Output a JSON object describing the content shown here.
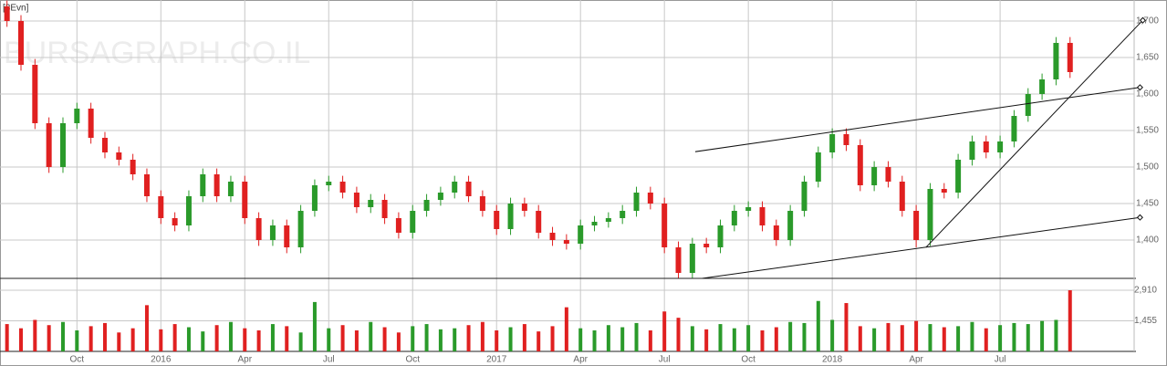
{
  "chart_data": {
    "type": "candlestick",
    "label": "[3Evn]",
    "watermark": "BURSAGRAPH.CO.IL",
    "categories": [
      null,
      null,
      null,
      null,
      null,
      "Oct",
      null,
      null,
      null,
      null,
      null,
      "2016",
      null,
      null,
      null,
      null,
      null,
      "Apr",
      null,
      null,
      null,
      null,
      null,
      "Jul",
      null,
      null,
      null,
      null,
      null,
      "Oct",
      null,
      null,
      null,
      null,
      null,
      "2017",
      null,
      null,
      null,
      null,
      null,
      "Apr",
      null,
      null,
      null,
      null,
      null,
      "Jul",
      null,
      null,
      null,
      null,
      null,
      "Oct",
      null,
      null,
      null,
      null,
      null,
      "2018",
      null,
      null,
      null,
      null,
      null,
      "Apr",
      null,
      null,
      null,
      null,
      null,
      "Jul",
      null,
      null,
      null,
      null,
      null
    ],
    "open": [
      1720,
      1700,
      1640,
      1560,
      1500,
      1560,
      1580,
      1540,
      1520,
      1510,
      1490,
      1460,
      1430,
      1420,
      1460,
      1490,
      1460,
      1480,
      1430,
      1400,
      1420,
      1390,
      1440,
      1475,
      1480,
      1465,
      1445,
      1455,
      1430,
      1410,
      1440,
      1455,
      1465,
      1480,
      1460,
      1440,
      1415,
      1450,
      1440,
      1410,
      1400,
      1395,
      1420,
      1425,
      1430,
      1440,
      1465,
      1450,
      1390,
      1355,
      1395,
      1390,
      1420,
      1440,
      1445,
      1420,
      1400,
      1440,
      1480,
      1520,
      1545,
      1530,
      1475,
      1500,
      1480,
      1440,
      1400,
      1470,
      1465,
      1510,
      1535,
      1520,
      1535,
      1570,
      1600,
      1620,
      1670
    ],
    "high": [
      1728,
      1708,
      1648,
      1568,
      1568,
      1588,
      1588,
      1548,
      1528,
      1518,
      1498,
      1468,
      1438,
      1468,
      1498,
      1498,
      1488,
      1488,
      1438,
      1428,
      1428,
      1448,
      1483,
      1488,
      1488,
      1473,
      1463,
      1463,
      1438,
      1448,
      1463,
      1473,
      1488,
      1488,
      1468,
      1448,
      1458,
      1458,
      1448,
      1418,
      1408,
      1428,
      1433,
      1438,
      1448,
      1473,
      1473,
      1458,
      1398,
      1403,
      1403,
      1428,
      1448,
      1453,
      1453,
      1428,
      1448,
      1488,
      1528,
      1553,
      1553,
      1538,
      1508,
      1508,
      1488,
      1448,
      1478,
      1478,
      1518,
      1543,
      1543,
      1543,
      1578,
      1608,
      1628,
      1678,
      1678
    ],
    "low": [
      1692,
      1632,
      1552,
      1492,
      1492,
      1552,
      1532,
      1512,
      1502,
      1482,
      1452,
      1422,
      1412,
      1412,
      1452,
      1452,
      1452,
      1422,
      1392,
      1392,
      1382,
      1382,
      1432,
      1467,
      1457,
      1437,
      1437,
      1422,
      1402,
      1402,
      1432,
      1447,
      1457,
      1452,
      1432,
      1407,
      1407,
      1432,
      1402,
      1392,
      1387,
      1387,
      1412,
      1417,
      1422,
      1432,
      1442,
      1382,
      1348,
      1348,
      1382,
      1382,
      1412,
      1432,
      1412,
      1392,
      1392,
      1432,
      1472,
      1512,
      1522,
      1467,
      1467,
      1472,
      1432,
      1390,
      1392,
      1457,
      1457,
      1502,
      1512,
      1512,
      1527,
      1562,
      1592,
      1612,
      1622
    ],
    "close": [
      1700,
      1640,
      1560,
      1500,
      1560,
      1580,
      1540,
      1520,
      1510,
      1490,
      1460,
      1430,
      1420,
      1460,
      1490,
      1460,
      1480,
      1430,
      1400,
      1420,
      1390,
      1440,
      1475,
      1480,
      1465,
      1445,
      1455,
      1430,
      1410,
      1440,
      1455,
      1465,
      1480,
      1460,
      1440,
      1415,
      1450,
      1440,
      1410,
      1400,
      1395,
      1420,
      1425,
      1430,
      1440,
      1465,
      1450,
      1390,
      1355,
      1395,
      1390,
      1420,
      1440,
      1445,
      1420,
      1400,
      1440,
      1480,
      1520,
      1545,
      1530,
      1475,
      1500,
      1480,
      1440,
      1400,
      1470,
      1465,
      1510,
      1535,
      1520,
      1535,
      1570,
      1600,
      1620,
      1670,
      1630
    ],
    "color_up": "#2a9a2a",
    "color_down": "#e02020",
    "ylim": [
      1347.5,
      1728.75
    ],
    "yticks": [
      {
        "value": 1400,
        "label": "1,400"
      },
      {
        "value": 1450,
        "label": "1,450"
      },
      {
        "value": 1500,
        "label": "1,500"
      },
      {
        "value": 1550,
        "label": "1,550"
      },
      {
        "value": 1600,
        "label": "1,600"
      },
      {
        "value": 1650,
        "label": "1,650"
      },
      {
        "value": 1700,
        "label": "1,700"
      }
    ],
    "grid": true,
    "volume": {
      "values": [
        1300,
        1100,
        1500,
        1250,
        1400,
        1000,
        1200,
        1350,
        900,
        1100,
        2200,
        1050,
        1300,
        1150,
        950,
        1250,
        1400,
        1100,
        1000,
        1300,
        1200,
        900,
        2350,
        1100,
        1250,
        1000,
        1400,
        1150,
        900,
        1200,
        1300,
        1050,
        1100,
        1250,
        1400,
        1000,
        1150,
        1300,
        950,
        1200,
        2100,
        1100,
        1000,
        1250,
        1150,
        1350,
        1000,
        1900,
        1600,
        1200,
        1050,
        1300,
        1100,
        1250,
        1000,
        1150,
        1400,
        1350,
        2400,
        1500,
        2300,
        1200,
        1100,
        1350,
        1250,
        1450,
        1300,
        1150,
        1200,
        1400,
        1100,
        1250,
        1350,
        1300,
        1450,
        1500,
        2910
      ],
      "ylim": [
        0,
        3475
      ],
      "yticks": [
        {
          "value": 1455,
          "label": "1,455"
        },
        {
          "value": 2910,
          "label": "2,910"
        }
      ]
    },
    "trend_lines": [
      {
        "x": [
          49.2,
          81
        ],
        "y": [
          1521,
          1609
        ]
      },
      {
        "x": [
          49.7,
          81
        ],
        "y": [
          1347.5,
          1431
        ]
      },
      {
        "x": [
          65.7,
          81.2
        ],
        "y": [
          1390,
          1701
        ]
      }
    ]
  }
}
